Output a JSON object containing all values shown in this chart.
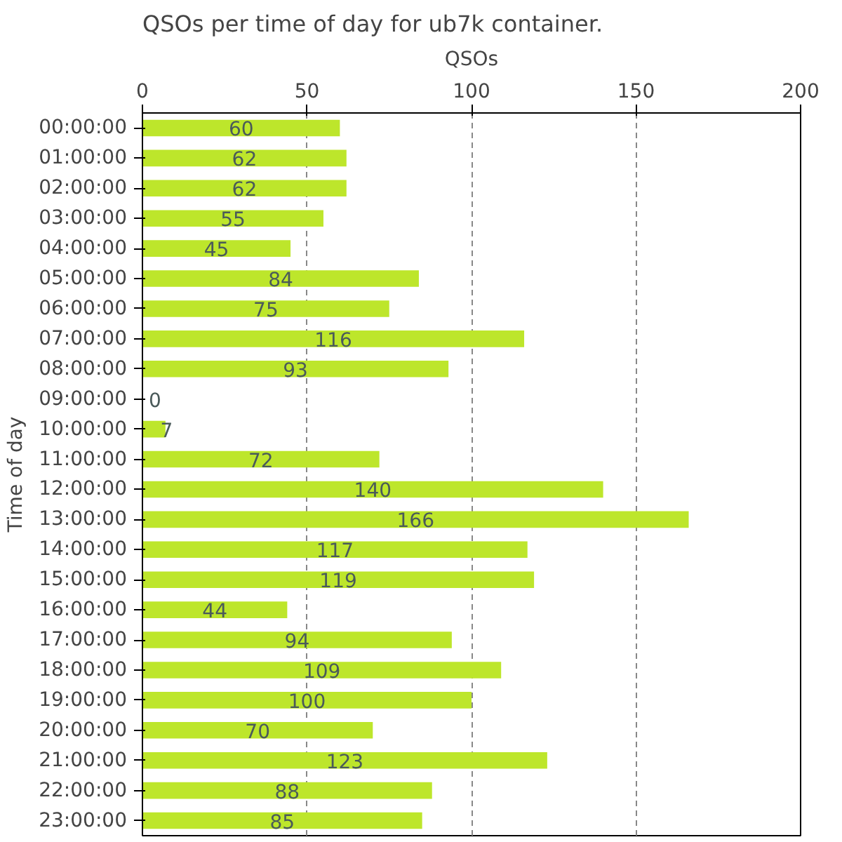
{
  "chart_data": {
    "type": "bar",
    "orientation": "horizontal",
    "title": "QSOs per time of day for ub7k container.",
    "xlabel": "QSOs",
    "ylabel": "Time of day",
    "categories": [
      "00:00:00",
      "01:00:00",
      "02:00:00",
      "03:00:00",
      "04:00:00",
      "05:00:00",
      "06:00:00",
      "07:00:00",
      "08:00:00",
      "09:00:00",
      "10:00:00",
      "11:00:00",
      "12:00:00",
      "13:00:00",
      "14:00:00",
      "15:00:00",
      "16:00:00",
      "17:00:00",
      "18:00:00",
      "19:00:00",
      "20:00:00",
      "21:00:00",
      "22:00:00",
      "23:00:00"
    ],
    "values": [
      60,
      62,
      62,
      55,
      45,
      84,
      75,
      116,
      93,
      0,
      7,
      72,
      140,
      166,
      117,
      119,
      44,
      94,
      109,
      100,
      70,
      123,
      88,
      85
    ],
    "color": "#bde62b",
    "xlim": [
      0,
      200
    ],
    "xticks": [
      0,
      50,
      100,
      150,
      200
    ],
    "grid": "x",
    "data_labels": true
  }
}
